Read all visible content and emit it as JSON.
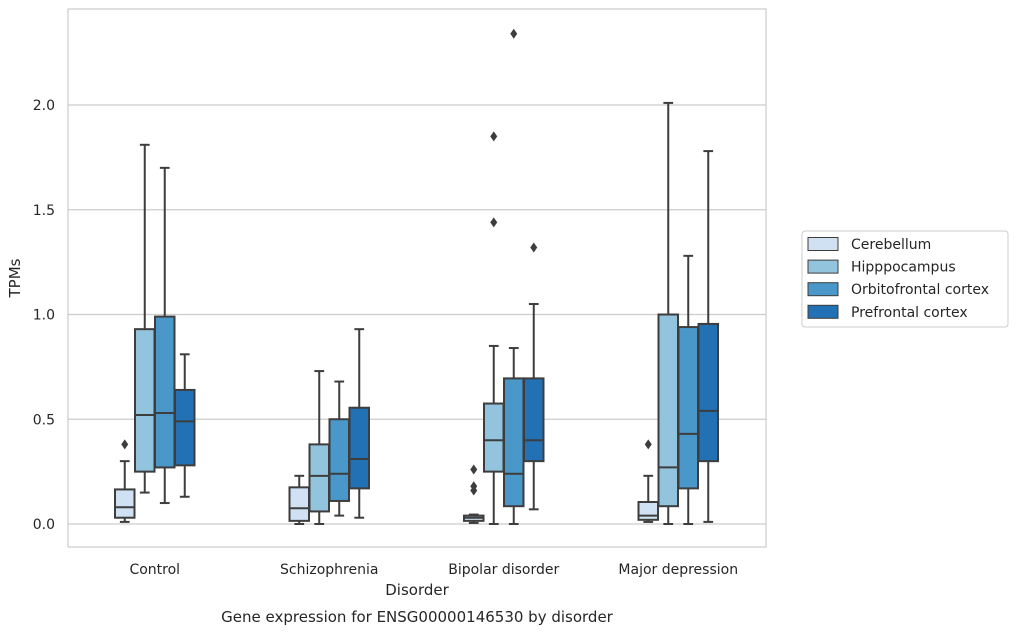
{
  "chart_data": {
    "type": "box",
    "title": "",
    "caption": "Gene expression for ENSG00000146530 by disorder",
    "xlabel": "Disorder",
    "ylabel": "TPMs",
    "ylim": [
      -0.11,
      2.47
    ],
    "yticks": [
      "0.0",
      "0.5",
      "1.0",
      "1.5",
      "2.0"
    ],
    "ytick_values": [
      0,
      0.5,
      1.0,
      1.5,
      2.0
    ],
    "categories": [
      "Control",
      "Schizophrenia",
      "Bipolar disorder",
      "Major depression"
    ],
    "grid": "horizontal",
    "legend_position": "right",
    "series": [
      {
        "name": "Cerebellum",
        "color": "#cfe1f2",
        "boxes": [
          {
            "whislo": 0.01,
            "q1": 0.03,
            "med": 0.08,
            "q3": 0.165,
            "whishi": 0.3,
            "fliers": [
              0.38
            ]
          },
          {
            "whislo": 0.0,
            "q1": 0.015,
            "med": 0.075,
            "q3": 0.175,
            "whishi": 0.23,
            "fliers": []
          },
          {
            "whislo": 0.005,
            "q1": 0.015,
            "med": 0.03,
            "q3": 0.04,
            "whishi": 0.045,
            "fliers": [
              0.26,
              0.18,
              0.16
            ]
          },
          {
            "whislo": 0.01,
            "q1": 0.02,
            "med": 0.04,
            "q3": 0.105,
            "whishi": 0.23,
            "fliers": [
              0.38
            ]
          }
        ]
      },
      {
        "name": "Hipppocampus",
        "color": "#93c4de",
        "boxes": [
          {
            "whislo": 0.15,
            "q1": 0.25,
            "med": 0.52,
            "q3": 0.93,
            "whishi": 1.81,
            "fliers": []
          },
          {
            "whislo": 0.0,
            "q1": 0.06,
            "med": 0.23,
            "q3": 0.38,
            "whishi": 0.73,
            "fliers": []
          },
          {
            "whislo": 0.0,
            "q1": 0.25,
            "med": 0.4,
            "q3": 0.575,
            "whishi": 0.85,
            "fliers": [
              1.85,
              1.44
            ]
          },
          {
            "whislo": 0.0,
            "q1": 0.085,
            "med": 0.27,
            "q3": 1.0,
            "whishi": 2.01,
            "fliers": []
          }
        ]
      },
      {
        "name": "Orbitofrontal cortex",
        "color": "#4a98c9",
        "boxes": [
          {
            "whislo": 0.1,
            "q1": 0.27,
            "med": 0.53,
            "q3": 0.99,
            "whishi": 1.7,
            "fliers": []
          },
          {
            "whislo": 0.04,
            "q1": 0.11,
            "med": 0.24,
            "q3": 0.5,
            "whishi": 0.68,
            "fliers": []
          },
          {
            "whislo": 0.0,
            "q1": 0.085,
            "med": 0.24,
            "q3": 0.695,
            "whishi": 0.84,
            "fliers": [
              2.34
            ]
          },
          {
            "whislo": 0.0,
            "q1": 0.17,
            "med": 0.43,
            "q3": 0.94,
            "whishi": 1.28,
            "fliers": []
          }
        ]
      },
      {
        "name": "Prefrontal cortex",
        "color": "#2271b5",
        "boxes": [
          {
            "whislo": 0.13,
            "q1": 0.28,
            "med": 0.49,
            "q3": 0.64,
            "whishi": 0.81,
            "fliers": []
          },
          {
            "whislo": 0.03,
            "q1": 0.17,
            "med": 0.31,
            "q3": 0.555,
            "whishi": 0.93,
            "fliers": []
          },
          {
            "whislo": 0.07,
            "q1": 0.3,
            "med": 0.4,
            "q3": 0.695,
            "whishi": 1.05,
            "fliers": [
              1.32
            ]
          },
          {
            "whislo": 0.01,
            "q1": 0.3,
            "med": 0.54,
            "q3": 0.955,
            "whishi": 1.78,
            "fliers": []
          }
        ]
      }
    ]
  }
}
